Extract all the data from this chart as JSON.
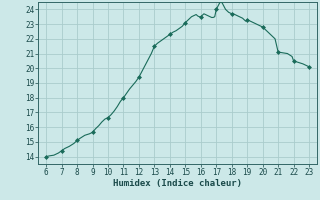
{
  "title": "",
  "xlabel": "Humidex (Indice chaleur)",
  "ylabel": "",
  "background_color": "#cce8e8",
  "grid_color": "#aacccc",
  "line_color": "#1a6b5a",
  "marker_color": "#1a6b5a",
  "xlim": [
    5.5,
    23.5
  ],
  "ylim": [
    13.5,
    24.5
  ],
  "xticks": [
    6,
    7,
    8,
    9,
    10,
    11,
    12,
    13,
    14,
    15,
    16,
    17,
    18,
    19,
    20,
    21,
    22,
    23
  ],
  "yticks": [
    14,
    15,
    16,
    17,
    18,
    19,
    20,
    21,
    22,
    23,
    24
  ],
  "x": [
    6.0,
    6.2,
    6.5,
    6.8,
    7.0,
    7.2,
    7.5,
    7.8,
    8.0,
    8.2,
    8.5,
    8.8,
    9.0,
    9.2,
    9.4,
    9.6,
    9.8,
    10.0,
    10.2,
    10.4,
    10.6,
    10.8,
    11.0,
    11.2,
    11.4,
    11.6,
    11.8,
    12.0,
    12.2,
    12.4,
    12.6,
    12.8,
    13.0,
    13.2,
    13.4,
    13.6,
    13.8,
    14.0,
    14.2,
    14.4,
    14.6,
    14.8,
    15.0,
    15.1,
    15.2,
    15.3,
    15.4,
    15.5,
    15.6,
    15.7,
    15.8,
    15.9,
    16.0,
    16.1,
    16.2,
    16.3,
    16.4,
    16.5,
    16.6,
    16.7,
    16.8,
    16.9,
    17.0,
    17.1,
    17.2,
    17.3,
    17.4,
    17.5,
    17.6,
    17.7,
    17.8,
    17.9,
    18.0,
    18.1,
    18.2,
    18.3,
    18.4,
    18.5,
    18.6,
    18.7,
    18.8,
    18.9,
    19.0,
    19.2,
    19.4,
    19.6,
    19.8,
    20.0,
    20.2,
    20.4,
    20.6,
    20.8,
    21.0,
    21.3,
    21.6,
    21.9,
    22.0,
    22.3,
    22.6,
    22.9,
    23.0
  ],
  "y": [
    14.0,
    14.05,
    14.1,
    14.25,
    14.4,
    14.55,
    14.7,
    14.9,
    15.1,
    15.25,
    15.45,
    15.55,
    15.65,
    15.9,
    16.1,
    16.35,
    16.55,
    16.65,
    16.85,
    17.1,
    17.4,
    17.75,
    18.0,
    18.3,
    18.6,
    18.85,
    19.1,
    19.4,
    19.8,
    20.2,
    20.6,
    21.0,
    21.5,
    21.7,
    21.85,
    22.0,
    22.15,
    22.3,
    22.45,
    22.55,
    22.7,
    22.85,
    23.1,
    23.2,
    23.3,
    23.4,
    23.5,
    23.55,
    23.6,
    23.65,
    23.55,
    23.5,
    23.5,
    23.6,
    23.7,
    23.65,
    23.6,
    23.55,
    23.5,
    23.45,
    23.45,
    23.5,
    24.0,
    24.2,
    24.4,
    24.55,
    24.4,
    24.2,
    24.0,
    23.9,
    23.8,
    23.75,
    23.7,
    23.7,
    23.65,
    23.6,
    23.55,
    23.5,
    23.45,
    23.4,
    23.3,
    23.2,
    23.3,
    23.2,
    23.1,
    23.0,
    22.9,
    22.8,
    22.6,
    22.4,
    22.2,
    22.0,
    21.1,
    21.05,
    21.0,
    20.8,
    20.5,
    20.4,
    20.3,
    20.15,
    20.1
  ],
  "marker_x": [
    6,
    7,
    8,
    9,
    10,
    11,
    12,
    13,
    14,
    15,
    16,
    17,
    18,
    19,
    20,
    21,
    22,
    23
  ],
  "marker_y": [
    14.0,
    14.4,
    15.1,
    15.65,
    16.65,
    18.0,
    19.4,
    21.5,
    22.3,
    23.1,
    23.5,
    24.0,
    23.7,
    23.3,
    22.8,
    21.1,
    20.5,
    20.1
  ]
}
